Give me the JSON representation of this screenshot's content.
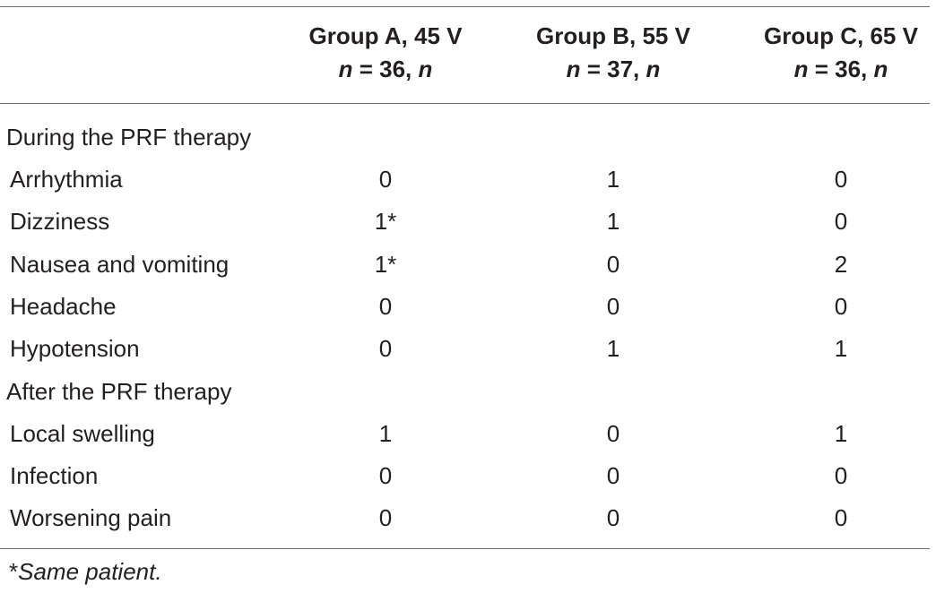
{
  "columns": [
    {
      "name": "Group A, 45 V",
      "n_label": "n",
      "n_value": "= 36,",
      "n_suffix": "n"
    },
    {
      "name": "Group B, 55 V",
      "n_label": "n",
      "n_value": "= 37,",
      "n_suffix": "n"
    },
    {
      "name": "Group C, 65 V",
      "n_label": "n",
      "n_value": "= 36,",
      "n_suffix": "n"
    }
  ],
  "sections": [
    {
      "title": "During the PRF therapy",
      "rows": [
        {
          "label": "Arrhythmia",
          "values": [
            "0",
            "1",
            "0"
          ]
        },
        {
          "label": "Dizziness",
          "values": [
            "1*",
            "1",
            "0"
          ]
        },
        {
          "label": "Nausea and vomiting",
          "values": [
            "1*",
            "0",
            "2"
          ]
        },
        {
          "label": "Headache",
          "values": [
            "0",
            "0",
            "0"
          ]
        },
        {
          "label": "Hypotension",
          "values": [
            "0",
            "1",
            "1"
          ]
        }
      ]
    },
    {
      "title": "After the PRF therapy",
      "rows": [
        {
          "label": "Local swelling",
          "values": [
            "1",
            "0",
            "1"
          ]
        },
        {
          "label": "Infection",
          "values": [
            "0",
            "0",
            "0"
          ]
        },
        {
          "label": "Worsening pain",
          "values": [
            "0",
            "0",
            "0"
          ]
        }
      ]
    }
  ],
  "footnote": {
    "marker": "*",
    "text": "Same patient."
  }
}
